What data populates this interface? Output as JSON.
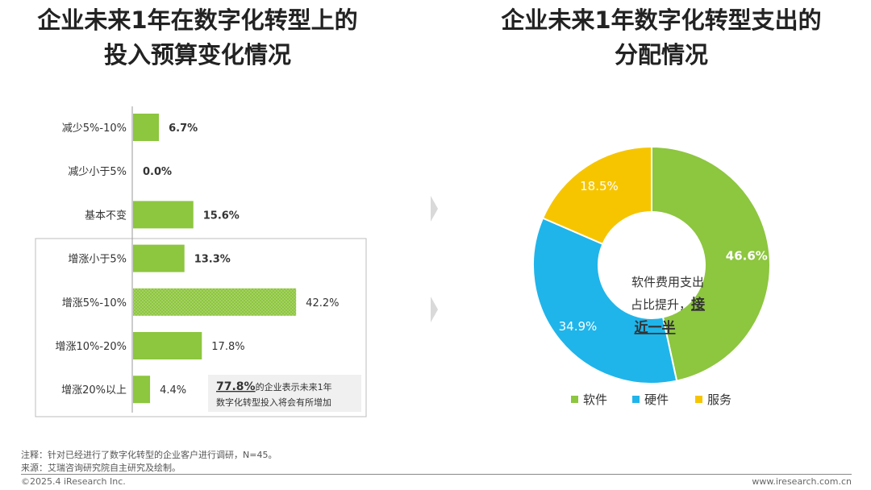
{
  "left_chart": {
    "title_line1": "企业未来1年在数字化转型上的",
    "title_line2": "投入预算变化情况",
    "callout": {
      "highlight": "77.8%",
      "line1_rest": "的企业表示未来1年",
      "line2": "数字化转型投入将会有所增加"
    }
  },
  "right_chart": {
    "title_line1": "企业未来1年数字化转型支出的",
    "title_line2": "分配情况",
    "center_text": {
      "line1": "软件费用支出",
      "line2_pre": "占比提升，",
      "line2_em": "接",
      "line3_em": "近一半"
    }
  },
  "chart_data": [
    {
      "type": "bar",
      "orientation": "horizontal",
      "title": "企业未来1年在数字化转型上的投入预算变化情况",
      "categories": [
        "减少5%-10%",
        "减少小于5%",
        "基本不变",
        "增涨小于5%",
        "增涨5%-10%",
        "增涨10%-20%",
        "增涨20%以上"
      ],
      "values": [
        6.7,
        0.0,
        15.6,
        13.3,
        42.2,
        17.8,
        4.4
      ],
      "value_labels": [
        "6.7%",
        "0.0%",
        "15.6%",
        "13.3%",
        "42.2%",
        "17.8%",
        "4.4%"
      ],
      "bold_labels": [
        true,
        true,
        true,
        true,
        false,
        false,
        false
      ],
      "color": "#8dc63f",
      "xlim": [
        0,
        45
      ]
    },
    {
      "type": "pie",
      "style": "donut",
      "title": "企业未来1年数字化转型支出的分配情况",
      "labels": [
        "软件",
        "硬件",
        "服务"
      ],
      "values": [
        46.6,
        34.9,
        18.5
      ],
      "value_labels": [
        "46.6%",
        "34.9%",
        "18.5%"
      ],
      "colors": [
        "#8dc63f",
        "#1fb5ea",
        "#f6c500"
      ],
      "legend_position": "bottom"
    }
  ],
  "notes": {
    "note": "注释：针对已经进行了数字化转型的企业客户进行调研，N=45。",
    "source": "来源：艾瑞咨询研究院自主研究及绘制。"
  },
  "footer": {
    "left": "©2025.4 iResearch Inc.",
    "right": "www.iresearch.com.cn"
  }
}
